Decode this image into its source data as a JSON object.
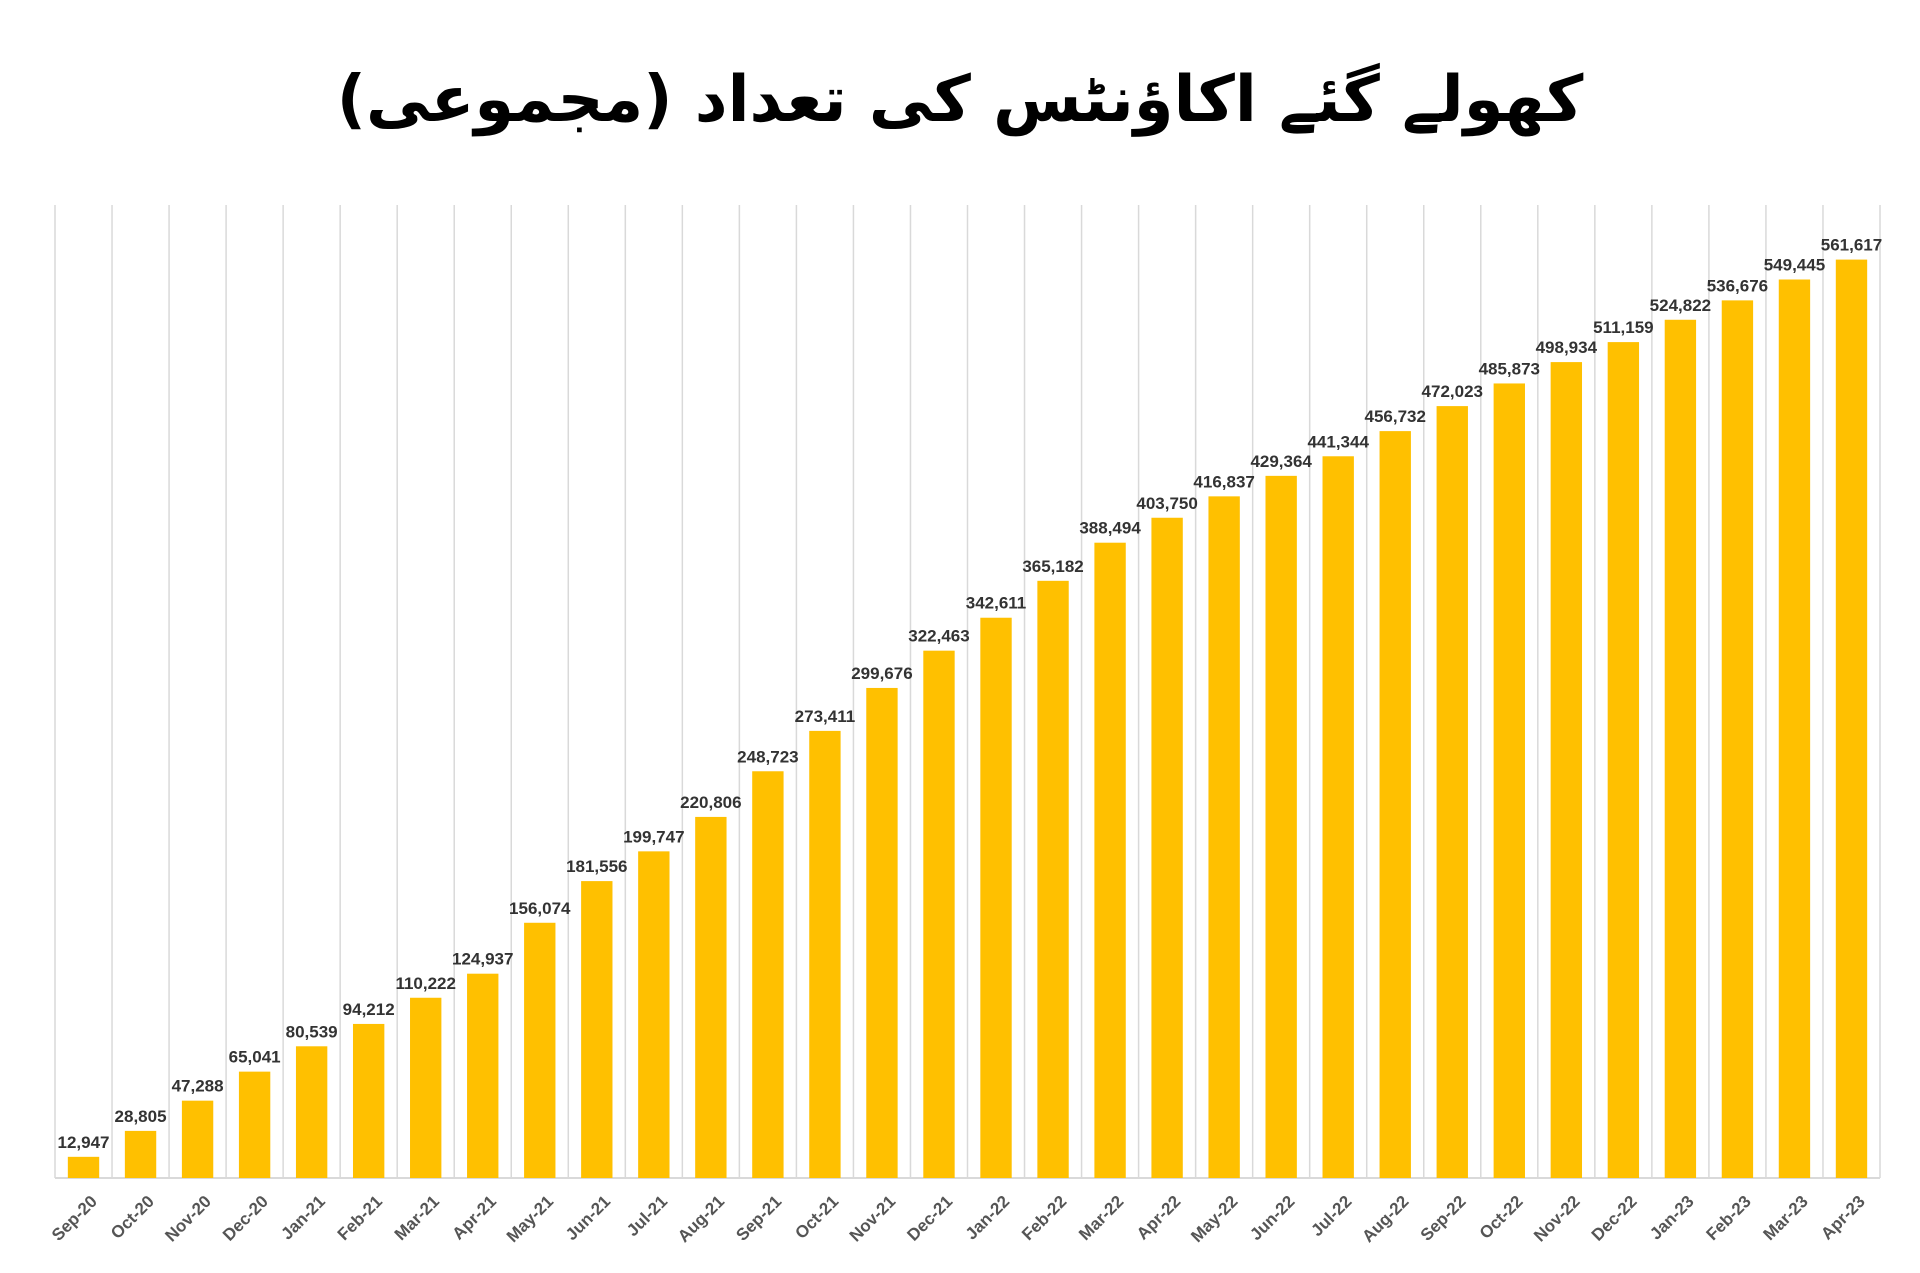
{
  "chart_data": {
    "type": "bar",
    "title": "کھولے گئے اکاؤنٹس کی تعداد (مجموعی)",
    "categories": [
      "Sep-20",
      "Oct-20",
      "Nov-20",
      "Dec-20",
      "Jan-21",
      "Feb-21",
      "Mar-21",
      "Apr-21",
      "May-21",
      "Jun-21",
      "Jul-21",
      "Aug-21",
      "Sep-21",
      "Oct-21",
      "Nov-21",
      "Dec-21",
      "Jan-22",
      "Feb-22",
      "Mar-22",
      "Apr-22",
      "May-22",
      "Jun-22",
      "Jul-22",
      "Aug-22",
      "Sep-22",
      "Oct-22",
      "Nov-22",
      "Dec-22",
      "Jan-23",
      "Feb-23",
      "Mar-23",
      "Apr-23"
    ],
    "values": [
      12947,
      28805,
      47288,
      65041,
      80539,
      94212,
      110222,
      124937,
      156074,
      181556,
      199747,
      220806,
      248723,
      273411,
      299676,
      322463,
      342611,
      365182,
      388494,
      403750,
      416837,
      429364,
      441344,
      456732,
      472023,
      485873,
      498934,
      511159,
      524822,
      536676,
      549445,
      561617
    ],
    "data_labels": [
      "12,947",
      "28,805",
      "47,288",
      "65,041",
      "80,539",
      "94,212",
      "110,222",
      "124,937",
      "156,074",
      "181,556",
      "199,747",
      "220,806",
      "248,723",
      "273,411",
      "299,676",
      "322,463",
      "342,611",
      "365,182",
      "388,494",
      "403,750",
      "416,837",
      "429,364",
      "441,344",
      "456,732",
      "472,023",
      "485,873",
      "498,934",
      "511,159",
      "524,822",
      "536,676",
      "549,445",
      "561,617"
    ],
    "ylim": [
      0,
      595000
    ],
    "grid": "vertical",
    "bar_color": "#FFC000",
    "grid_color": "#D9D9D9",
    "axis_color": "#D9D9D9"
  }
}
